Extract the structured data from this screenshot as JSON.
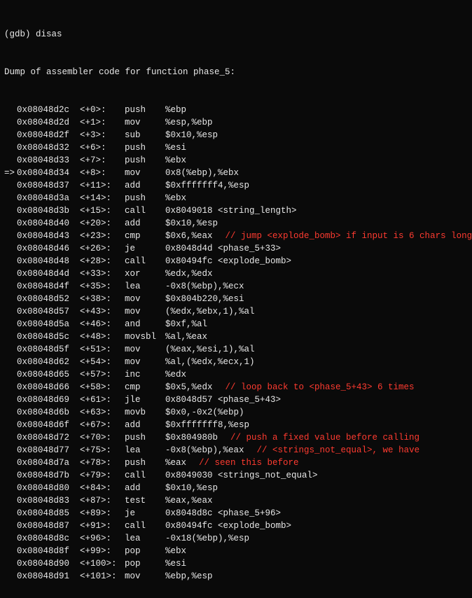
{
  "colors": {
    "bg": "#0a0a0a",
    "fg": "#e8e8e8",
    "comment": "#ff3b30"
  },
  "prompt": "(gdb) disas",
  "dump_header": "Dump of assembler code for function phase_5:",
  "current_marker": "=>",
  "rows": [
    {
      "addr": "0x08048d2c",
      "off": "<+0>:",
      "mn": "push",
      "ops": "%ebp",
      "cm": "",
      "cur": false
    },
    {
      "addr": "0x08048d2d",
      "off": "<+1>:",
      "mn": "mov",
      "ops": "%esp,%ebp",
      "cm": "",
      "cur": false
    },
    {
      "addr": "0x08048d2f",
      "off": "<+3>:",
      "mn": "sub",
      "ops": "$0x10,%esp",
      "cm": "",
      "cur": false
    },
    {
      "addr": "0x08048d32",
      "off": "<+6>:",
      "mn": "push",
      "ops": "%esi",
      "cm": "",
      "cur": false
    },
    {
      "addr": "0x08048d33",
      "off": "<+7>:",
      "mn": "push",
      "ops": "%ebx",
      "cm": "",
      "cur": false
    },
    {
      "addr": "0x08048d34",
      "off": "<+8>:",
      "mn": "mov",
      "ops": "0x8(%ebp),%ebx",
      "cm": "",
      "cur": true
    },
    {
      "addr": "0x08048d37",
      "off": "<+11>:",
      "mn": "add",
      "ops": "$0xfffffff4,%esp",
      "cm": "",
      "cur": false
    },
    {
      "addr": "0x08048d3a",
      "off": "<+14>:",
      "mn": "push",
      "ops": "%ebx",
      "cm": "",
      "cur": false
    },
    {
      "addr": "0x08048d3b",
      "off": "<+15>:",
      "mn": "call",
      "ops": "0x8049018 <string_length>",
      "cm": "",
      "cur": false
    },
    {
      "addr": "0x08048d40",
      "off": "<+20>:",
      "mn": "add",
      "ops": "$0x10,%esp",
      "cm": "",
      "cur": false
    },
    {
      "addr": "0x08048d43",
      "off": "<+23>:",
      "mn": "cmp",
      "ops": "$0x6,%eax",
      "cm": "// jump <explode_bomb> if input is 6 chars long",
      "cur": false
    },
    {
      "addr": "0x08048d46",
      "off": "<+26>:",
      "mn": "je",
      "ops": "0x8048d4d <phase_5+33>",
      "cm": "",
      "cur": false
    },
    {
      "addr": "0x08048d48",
      "off": "<+28>:",
      "mn": "call",
      "ops": "0x80494fc <explode_bomb>",
      "cm": "",
      "cur": false
    },
    {
      "addr": "0x08048d4d",
      "off": "<+33>:",
      "mn": "xor",
      "ops": "%edx,%edx",
      "cm": "",
      "cur": false
    },
    {
      "addr": "0x08048d4f",
      "off": "<+35>:",
      "mn": "lea",
      "ops": "-0x8(%ebp),%ecx",
      "cm": "",
      "cur": false
    },
    {
      "addr": "0x08048d52",
      "off": "<+38>:",
      "mn": "mov",
      "ops": "$0x804b220,%esi",
      "cm": "",
      "cur": false
    },
    {
      "addr": "0x08048d57",
      "off": "<+43>:",
      "mn": "mov",
      "ops": "(%edx,%ebx,1),%al",
      "cm": "",
      "cur": false
    },
    {
      "addr": "0x08048d5a",
      "off": "<+46>:",
      "mn": "and",
      "ops": "$0xf,%al",
      "cm": "",
      "cur": false
    },
    {
      "addr": "0x08048d5c",
      "off": "<+48>:",
      "mn": "movsbl",
      "ops": "%al,%eax",
      "cm": "",
      "cur": false
    },
    {
      "addr": "0x08048d5f",
      "off": "<+51>:",
      "mn": "mov",
      "ops": "(%eax,%esi,1),%al",
      "cm": "",
      "cur": false
    },
    {
      "addr": "0x08048d62",
      "off": "<+54>:",
      "mn": "mov",
      "ops": "%al,(%edx,%ecx,1)",
      "cm": "",
      "cur": false
    },
    {
      "addr": "0x08048d65",
      "off": "<+57>:",
      "mn": "inc",
      "ops": "%edx",
      "cm": "",
      "cur": false
    },
    {
      "addr": "0x08048d66",
      "off": "<+58>:",
      "mn": "cmp",
      "ops": "$0x5,%edx",
      "cm": "// loop back to <phase_5+43> 6 times",
      "cur": false
    },
    {
      "addr": "0x08048d69",
      "off": "<+61>:",
      "mn": "jle",
      "ops": "0x8048d57 <phase_5+43>",
      "cm": "",
      "cur": false
    },
    {
      "addr": "0x08048d6b",
      "off": "<+63>:",
      "mn": "movb",
      "ops": "$0x0,-0x2(%ebp)",
      "cm": "",
      "cur": false
    },
    {
      "addr": "0x08048d6f",
      "off": "<+67>:",
      "mn": "add",
      "ops": "$0xfffffff8,%esp",
      "cm": "",
      "cur": false
    },
    {
      "addr": "0x08048d72",
      "off": "<+70>:",
      "mn": "push",
      "ops": "$0x804980b",
      "cm": "// push a fixed value before calling",
      "cur": false
    },
    {
      "addr": "0x08048d77",
      "off": "<+75>:",
      "mn": "lea",
      "ops": "-0x8(%ebp),%eax",
      "cm": "// <strings_not_equal>, we have",
      "cur": false
    },
    {
      "addr": "0x08048d7a",
      "off": "<+78>:",
      "mn": "push",
      "ops": "%eax",
      "cm": "// seen this before",
      "cur": false
    },
    {
      "addr": "0x08048d7b",
      "off": "<+79>:",
      "mn": "call",
      "ops": "0x8049030 <strings_not_equal>",
      "cm": "",
      "cur": false
    },
    {
      "addr": "0x08048d80",
      "off": "<+84>:",
      "mn": "add",
      "ops": "$0x10,%esp",
      "cm": "",
      "cur": false
    },
    {
      "addr": "0x08048d83",
      "off": "<+87>:",
      "mn": "test",
      "ops": "%eax,%eax",
      "cm": "",
      "cur": false
    },
    {
      "addr": "0x08048d85",
      "off": "<+89>:",
      "mn": "je",
      "ops": "0x8048d8c <phase_5+96>",
      "cm": "",
      "cur": false
    },
    {
      "addr": "0x08048d87",
      "off": "<+91>:",
      "mn": "call",
      "ops": "0x80494fc <explode_bomb>",
      "cm": "",
      "cur": false
    },
    {
      "addr": "0x08048d8c",
      "off": "<+96>:",
      "mn": "lea",
      "ops": "-0x18(%ebp),%esp",
      "cm": "",
      "cur": false
    },
    {
      "addr": "0x08048d8f",
      "off": "<+99>:",
      "mn": "pop",
      "ops": "%ebx",
      "cm": "",
      "cur": false
    },
    {
      "addr": "0x08048d90",
      "off": "<+100>:",
      "mn": "pop",
      "ops": "%esi",
      "cm": "",
      "cur": false
    },
    {
      "addr": "0x08048d91",
      "off": "<+101>:",
      "mn": "mov",
      "ops": "%ebp,%esp",
      "cm": "",
      "cur": false
    }
  ]
}
